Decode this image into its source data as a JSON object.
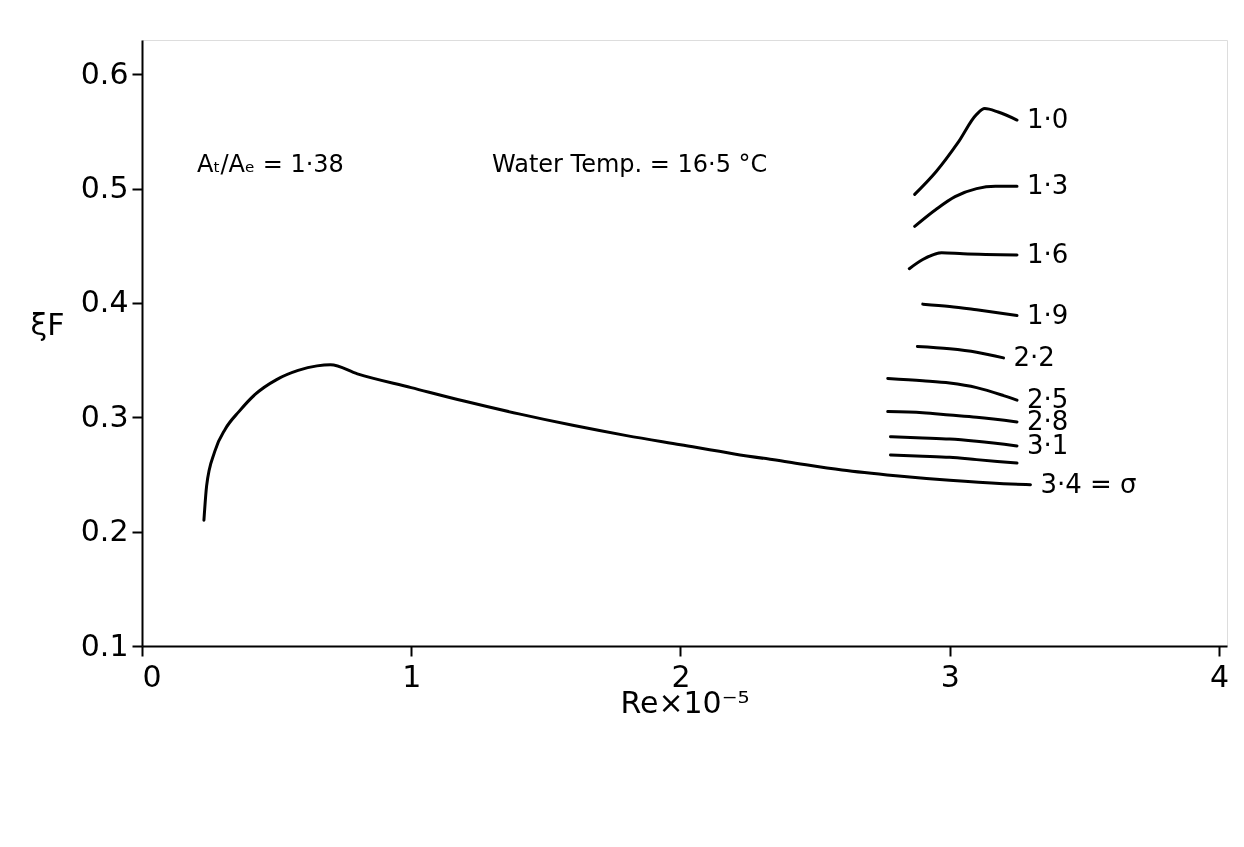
{
  "chart_data": {
    "type": "line",
    "xlabel": "Re×10⁻⁵",
    "ylabel": "ξF",
    "annotations": [
      "Aₜ/Aₑ = 1·38",
      "Water Temp. = 16·5 °C"
    ],
    "xlim": [
      0,
      4.03
    ],
    "ylim": [
      0.1,
      0.63
    ],
    "xticks": [
      0,
      1,
      2,
      3,
      4
    ],
    "yticks": [
      0.1,
      0.2,
      0.3,
      0.4,
      0.5,
      0.6
    ],
    "grid": false,
    "legend": false,
    "marker": "none",
    "line_style": "solid",
    "series": [
      {
        "name": "1·0",
        "color": "#000000",
        "x": [
          2.87,
          2.95,
          3.03,
          3.1,
          3.13,
          3.18,
          3.25
        ],
        "values": [
          0.495,
          0.515,
          0.54,
          0.565,
          0.57,
          0.567,
          0.56
        ]
      },
      {
        "name": "1·3",
        "color": "#000000",
        "x": [
          2.87,
          2.95,
          3.02,
          3.1,
          3.17,
          3.25
        ],
        "values": [
          0.467,
          0.482,
          0.493,
          0.5,
          0.502,
          0.502
        ]
      },
      {
        "name": "1·6",
        "color": "#000000",
        "x": [
          2.85,
          2.9,
          2.97,
          3.05,
          3.25
        ],
        "values": [
          0.43,
          0.438,
          0.444,
          0.443,
          0.442
        ]
      },
      {
        "name": "1·9",
        "color": "#000000",
        "x": [
          2.9,
          3.0,
          3.1,
          3.25
        ],
        "values": [
          0.399,
          0.397,
          0.394,
          0.389
        ]
      },
      {
        "name": "2·2",
        "color": "#000000",
        "x": [
          2.88,
          3.0,
          3.1,
          3.2
        ],
        "values": [
          0.362,
          0.36,
          0.357,
          0.352
        ]
      },
      {
        "name": "2·5",
        "color": "#000000",
        "x": [
          2.77,
          2.9,
          3.0,
          3.1,
          3.2,
          3.25
        ],
        "values": [
          0.334,
          0.332,
          0.33,
          0.326,
          0.319,
          0.315
        ]
      },
      {
        "name": "2·8",
        "color": "#000000",
        "x": [
          2.77,
          2.9,
          3.0,
          3.1,
          3.25
        ],
        "values": [
          0.305,
          0.304,
          0.302,
          0.3,
          0.296
        ]
      },
      {
        "name": "3·1",
        "color": "#000000",
        "x": [
          2.78,
          2.9,
          3.0,
          3.1,
          3.25
        ],
        "values": [
          0.283,
          0.282,
          0.281,
          0.279,
          0.275
        ]
      },
      {
        "color": "#000000",
        "x": [
          2.78,
          2.9,
          3.0,
          3.1,
          3.25
        ],
        "values": [
          0.267,
          0.266,
          0.265,
          0.263,
          0.26
        ]
      },
      {
        "name": "3·4 = σ",
        "color": "#000000",
        "x": [
          0.23,
          0.24,
          0.27,
          0.31,
          0.36,
          0.42,
          0.5,
          0.58,
          0.65,
          0.7,
          0.8,
          1.0,
          1.2,
          1.4,
          1.6,
          1.8,
          2.0,
          2.2,
          2.4,
          2.6,
          2.8,
          3.0,
          3.2,
          3.3
        ],
        "values": [
          0.21,
          0.24,
          0.27,
          0.29,
          0.305,
          0.32,
          0.333,
          0.341,
          0.345,
          0.346,
          0.338,
          0.326,
          0.314,
          0.303,
          0.293,
          0.284,
          0.276,
          0.268,
          0.261,
          0.254,
          0.249,
          0.245,
          0.242,
          0.241
        ]
      }
    ]
  }
}
